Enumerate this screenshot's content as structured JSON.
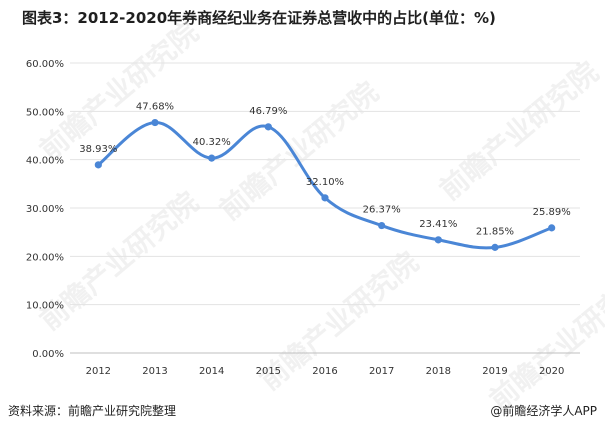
{
  "page": {
    "title": "图表3：2012-2020年券商经纪业务在证券总营收中的占比(单位：%)",
    "source": "资料来源：前瞻产业研究院整理",
    "credit": "@前瞻经济学人APP",
    "watermark": "前瞻产业研究院"
  },
  "chart_data": {
    "type": "line",
    "title": "图表3：2012-2020年券商经纪业务在证券总营收中的占比(单位：%)",
    "categories": [
      "2012",
      "2013",
      "2014",
      "2015",
      "2016",
      "2017",
      "2018",
      "2019",
      "2020"
    ],
    "series": [
      {
        "values": [
          38.93,
          47.68,
          40.32,
          46.79,
          32.1,
          26.37,
          23.41,
          21.85,
          25.89
        ],
        "labels": [
          "38.93%",
          "47.68%",
          "40.32%",
          "46.79%",
          "32.10%",
          "26.37%",
          "23.41%",
          "21.85%",
          "25.89%"
        ],
        "color": "#4a86d6"
      }
    ],
    "yticks": [
      "0.00%",
      "10.00%",
      "20.00%",
      "30.00%",
      "40.00%",
      "50.00%",
      "60.00%"
    ],
    "ylim": [
      0,
      60
    ],
    "grid": true,
    "xlabel": "",
    "ylabel": ""
  }
}
